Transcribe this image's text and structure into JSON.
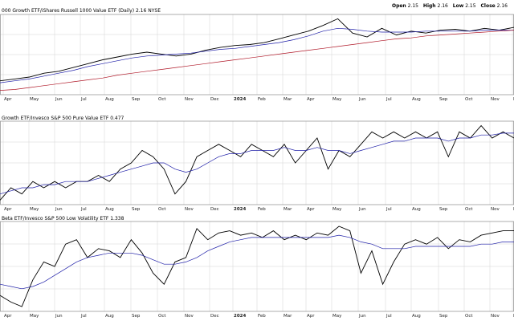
{
  "header": {
    "open_label": "Open",
    "open_value": "2.15",
    "high_label": "High",
    "high_value": "2.16",
    "low_label": "Low",
    "low_value": "2.15",
    "close_label": "Close",
    "close_value": "2.16"
  },
  "colors": {
    "price": "#000000",
    "ma_fast": "#1f1fa8",
    "ma_slow": "#b01828",
    "grid": "#d4d4d4",
    "border": "#8a8a8a"
  },
  "chart_data": [
    {
      "type": "line",
      "title": "000 Growth ETF/iShares Russell 1000 Value ETF (Daily) 2.16",
      "exchange": "NYSE",
      "x_tick_labels": [
        "Apr",
        "May",
        "Jun",
        "Jul",
        "Aug",
        "Sep",
        "Oct",
        "Nov",
        "Dec",
        "2024",
        "Feb",
        "Mar",
        "Apr",
        "May",
        "Jun",
        "Jul",
        "Aug",
        "Sep",
        "Oct",
        "Nov",
        "D"
      ],
      "series": [
        {
          "values": [
            1.6,
            1.62,
            1.64,
            1.68,
            1.7,
            1.74,
            1.78,
            1.82,
            1.85,
            1.88,
            1.9,
            1.88,
            1.86,
            1.88,
            1.92,
            1.95,
            1.97,
            1.98,
            2.0,
            2.04,
            2.08,
            2.12,
            2.18,
            2.25,
            2.1,
            2.06,
            2.15,
            2.08,
            2.12,
            2.1,
            2.13,
            2.14,
            2.12,
            2.15,
            2.13,
            2.16
          ]
        },
        {
          "values": [
            1.58,
            1.6,
            1.62,
            1.65,
            1.68,
            1.71,
            1.75,
            1.78,
            1.81,
            1.84,
            1.86,
            1.87,
            1.88,
            1.89,
            1.91,
            1.93,
            1.94,
            1.96,
            1.98,
            2.0,
            2.03,
            2.07,
            2.12,
            2.15,
            2.14,
            2.12,
            2.11,
            2.11,
            2.11,
            2.12,
            2.12,
            2.12,
            2.12,
            2.13,
            2.13,
            2.13
          ]
        },
        {
          "values": [
            1.5,
            1.51,
            1.53,
            1.55,
            1.57,
            1.59,
            1.61,
            1.63,
            1.66,
            1.68,
            1.7,
            1.72,
            1.74,
            1.76,
            1.78,
            1.8,
            1.82,
            1.84,
            1.86,
            1.88,
            1.9,
            1.92,
            1.94,
            1.96,
            1.98,
            2.0,
            2.02,
            2.04,
            2.05,
            2.07,
            2.08,
            2.09,
            2.1,
            2.11,
            2.12,
            2.13
          ]
        }
      ]
    },
    {
      "type": "line",
      "title": "Growth ETF/Invesco S&P 500 Pure Value ETF 0.477",
      "series": [
        {
          "values": [
            0.37,
            0.39,
            0.38,
            0.4,
            0.39,
            0.4,
            0.39,
            0.4,
            0.4,
            0.41,
            0.4,
            0.42,
            0.43,
            0.45,
            0.44,
            0.42,
            0.38,
            0.4,
            0.44,
            0.45,
            0.46,
            0.45,
            0.44,
            0.46,
            0.45,
            0.44,
            0.46,
            0.43,
            0.45,
            0.47,
            0.42,
            0.45,
            0.44,
            0.46,
            0.48,
            0.47,
            0.48,
            0.47,
            0.48,
            0.47,
            0.48,
            0.44,
            0.48,
            0.47,
            0.49,
            0.47,
            0.48,
            0.47
          ]
        },
        {
          "values": [
            0.38,
            0.385,
            0.39,
            0.39,
            0.395,
            0.395,
            0.4,
            0.4,
            0.4,
            0.405,
            0.41,
            0.415,
            0.42,
            0.425,
            0.43,
            0.43,
            0.42,
            0.415,
            0.42,
            0.43,
            0.44,
            0.445,
            0.445,
            0.45,
            0.45,
            0.45,
            0.455,
            0.45,
            0.45,
            0.455,
            0.45,
            0.45,
            0.445,
            0.45,
            0.455,
            0.46,
            0.465,
            0.465,
            0.47,
            0.47,
            0.47,
            0.465,
            0.47,
            0.47,
            0.475,
            0.475,
            0.478,
            0.478
          ]
        }
      ]
    },
    {
      "type": "line",
      "title": "Beta ETF/Invesco S&P 500 Low Volatility ETF 1.338",
      "series": [
        {
          "values": [
            1.05,
            1.02,
            1.0,
            1.12,
            1.2,
            1.18,
            1.28,
            1.3,
            1.22,
            1.26,
            1.25,
            1.22,
            1.3,
            1.24,
            1.15,
            1.1,
            1.2,
            1.22,
            1.35,
            1.3,
            1.33,
            1.34,
            1.32,
            1.33,
            1.31,
            1.34,
            1.3,
            1.32,
            1.3,
            1.33,
            1.32,
            1.36,
            1.34,
            1.15,
            1.25,
            1.1,
            1.2,
            1.28,
            1.3,
            1.28,
            1.31,
            1.26,
            1.3,
            1.29,
            1.32,
            1.33,
            1.34,
            1.34
          ]
        },
        {
          "values": [
            1.1,
            1.09,
            1.08,
            1.09,
            1.11,
            1.14,
            1.17,
            1.2,
            1.22,
            1.23,
            1.24,
            1.24,
            1.24,
            1.23,
            1.21,
            1.19,
            1.19,
            1.2,
            1.22,
            1.25,
            1.27,
            1.29,
            1.3,
            1.31,
            1.31,
            1.31,
            1.31,
            1.31,
            1.31,
            1.31,
            1.31,
            1.32,
            1.31,
            1.29,
            1.28,
            1.26,
            1.26,
            1.26,
            1.27,
            1.27,
            1.27,
            1.27,
            1.27,
            1.27,
            1.28,
            1.28,
            1.29,
            1.29
          ]
        }
      ]
    }
  ]
}
